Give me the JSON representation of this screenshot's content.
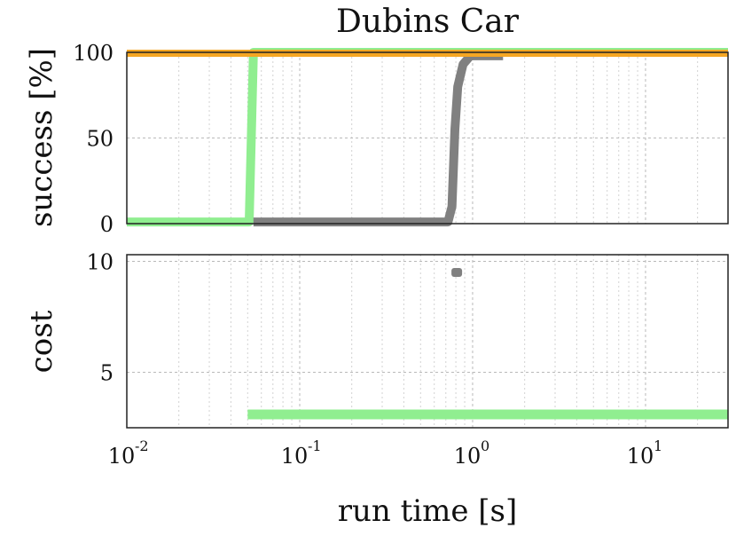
{
  "chart_data": [
    {
      "type": "line",
      "title": "Dubins Car",
      "ylabel": "success [%]",
      "xscale": "log",
      "xlim": [
        0.01,
        30
      ],
      "ylim": [
        0,
        100
      ],
      "yticks": [
        0,
        50,
        100
      ],
      "grid": true,
      "series": [
        {
          "color": "#90ee90",
          "x": [
            0.01,
            0.051,
            0.054,
            30
          ],
          "y": [
            1,
            1,
            100,
            100
          ]
        },
        {
          "color": "#808080",
          "x": [
            0.054,
            0.72,
            0.76,
            0.79,
            0.82,
            0.88,
            0.97,
            1.5
          ],
          "y": [
            1,
            1,
            10,
            55,
            80,
            93,
            98,
            98
          ]
        },
        {
          "color": "#f5a623",
          "x": [
            0.01,
            30
          ],
          "y": [
            99.5,
            99.5
          ]
        }
      ]
    },
    {
      "type": "scatter",
      "ylabel": "cost",
      "xlabel": "run time [s]",
      "xscale": "log",
      "xlim": [
        0.01,
        30
      ],
      "ylim": [
        2.5,
        10.3
      ],
      "yticks": [
        5,
        10
      ],
      "xticks": [
        {
          "base": "10",
          "exp": "-2",
          "value": 0.01
        },
        {
          "base": "10",
          "exp": "-1",
          "value": 0.1
        },
        {
          "base": "10",
          "exp": "0",
          "value": 1
        },
        {
          "base": "10",
          "exp": "1",
          "value": 10
        }
      ],
      "grid": true,
      "series": [
        {
          "color": "#90ee90",
          "x": [
            0.05,
            30
          ],
          "y": [
            3.1,
            3.1
          ]
        },
        {
          "color": "#808080",
          "x": [
            0.81
          ],
          "y": [
            9.5
          ]
        }
      ]
    }
  ]
}
